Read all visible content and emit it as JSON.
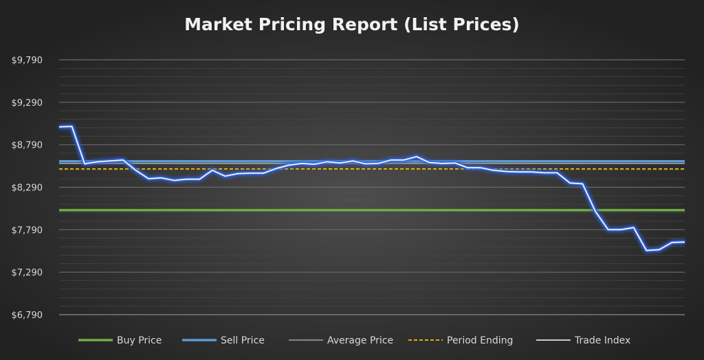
{
  "chart_data": {
    "type": "line",
    "title": "Market Pricing Report (List Prices)",
    "xlabel": "",
    "ylabel": "",
    "ylim": [
      6790,
      9790
    ],
    "y_ticks": [
      "$6,790",
      "$7,290",
      "$7,790",
      "$8,290",
      "$8,790",
      "$9,290",
      "$9,790"
    ],
    "y_tick_values": [
      6790,
      7290,
      7790,
      8290,
      8790,
      9290,
      9790
    ],
    "grid": true,
    "legend_position": "bottom",
    "series": [
      {
        "name": "Buy Price",
        "style": "solid-thick",
        "color": "#70ad47",
        "values": [
          8020,
          8020
        ]
      },
      {
        "name": "Sell Price",
        "style": "solid-thick",
        "color": "#5b9bd5",
        "values": [
          8595,
          8595
        ]
      },
      {
        "name": "Average Price",
        "style": "solid-thin",
        "color": "#a5a5a5",
        "values": [
          8570,
          8570
        ]
      },
      {
        "name": "Period Ending",
        "style": "dashed",
        "color": "#ffc000",
        "values": [
          8505,
          8505
        ]
      },
      {
        "name": "Trade Index",
        "style": "glow",
        "color": "#ffffff",
        "values": [
          9000,
          9005,
          8565,
          8590,
          8600,
          8610,
          8490,
          8390,
          8400,
          8370,
          8385,
          8385,
          8490,
          8420,
          8450,
          8455,
          8455,
          8510,
          8550,
          8570,
          8560,
          8590,
          8575,
          8600,
          8565,
          8570,
          8610,
          8610,
          8650,
          8580,
          8570,
          8575,
          8520,
          8520,
          8490,
          8475,
          8470,
          8470,
          8460,
          8460,
          8340,
          8330,
          8005,
          7790,
          7790,
          7815,
          7545,
          7555,
          7640,
          7645
        ]
      }
    ],
    "colors": {
      "background": "#262626",
      "gridline": "#4a4a4a",
      "axis": "#808080",
      "text": "#d9d9d9",
      "title": "#f2f2f2"
    }
  }
}
